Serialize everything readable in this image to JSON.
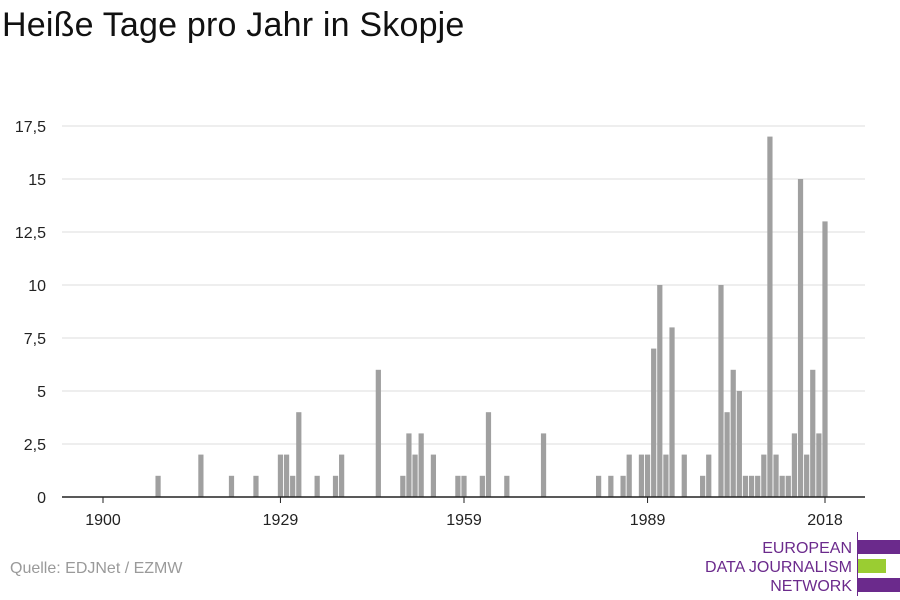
{
  "title": "Heiße Tage pro Jahr in Skopje",
  "source": "Quelle: EDJNet / EZMW",
  "logo": {
    "line1": "EUROPEAN",
    "line2": "DATA JOURNALISM",
    "line3": "NETWORK",
    "color_purple": "#6b2a8c",
    "color_green": "#9acd32"
  },
  "colors": {
    "bar": "#a0a0a0",
    "grid": "#dddddd",
    "axis": "#222222",
    "text": "#222222"
  },
  "chart_data": {
    "type": "bar",
    "title": "Heiße Tage pro Jahr in Skopje",
    "xlabel": "",
    "ylabel": "",
    "ylim": [
      0,
      17.5
    ],
    "xlim": [
      1900,
      2018
    ],
    "y_ticks": [
      {
        "value": 0,
        "label": "0"
      },
      {
        "value": 2.5,
        "label": "2,5"
      },
      {
        "value": 5,
        "label": "5"
      },
      {
        "value": 7.5,
        "label": "7,5"
      },
      {
        "value": 10,
        "label": "10"
      },
      {
        "value": 12.5,
        "label": "12,5"
      },
      {
        "value": 15,
        "label": "15"
      },
      {
        "value": 17.5,
        "label": "17,5"
      }
    ],
    "x_ticks": [
      {
        "value": 1900,
        "label": "1900"
      },
      {
        "value": 1929,
        "label": "1929"
      },
      {
        "value": 1959,
        "label": "1959"
      },
      {
        "value": 1989,
        "label": "1989"
      },
      {
        "value": 2018,
        "label": "2018"
      }
    ],
    "grid": true,
    "legend": "none",
    "x": [
      1909,
      1916,
      1921,
      1925,
      1929,
      1930,
      1931,
      1932,
      1935,
      1938,
      1939,
      1945,
      1949,
      1950,
      1951,
      1952,
      1954,
      1958,
      1959,
      1962,
      1963,
      1966,
      1972,
      1981,
      1983,
      1985,
      1986,
      1988,
      1989,
      1990,
      1991,
      1992,
      1993,
      1995,
      1998,
      1999,
      2001,
      2002,
      2003,
      2004,
      2005,
      2006,
      2007,
      2008,
      2009,
      2010,
      2011,
      2012,
      2013,
      2014,
      2015,
      2016,
      2017,
      2018
    ],
    "values": [
      1,
      2,
      1,
      1,
      2,
      2,
      1,
      4,
      1,
      1,
      2,
      6,
      1,
      3,
      2,
      3,
      2,
      1,
      1,
      1,
      4,
      1,
      3,
      1,
      1,
      1,
      2,
      2,
      2,
      7,
      10,
      2,
      8,
      2,
      1,
      2,
      10,
      4,
      6,
      5,
      1,
      1,
      1,
      2,
      17,
      2,
      1,
      1,
      3,
      15,
      2,
      6,
      3,
      13
    ]
  }
}
